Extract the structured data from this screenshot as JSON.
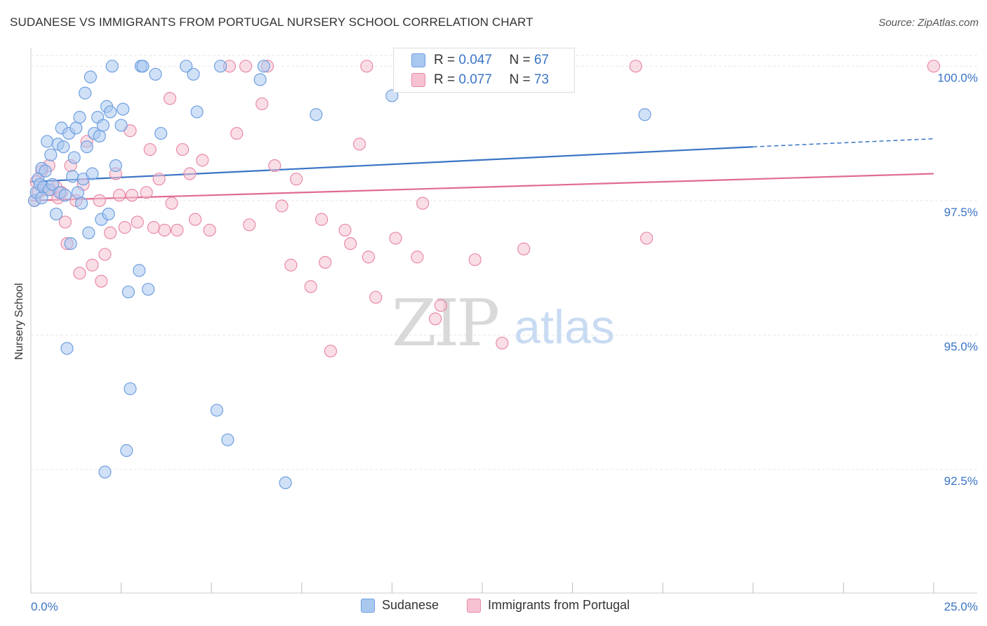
{
  "title": "SUDANESE VS IMMIGRANTS FROM PORTUGAL NURSERY SCHOOL CORRELATION CHART",
  "source": "Source: ZipAtlas.com",
  "watermark": {
    "zip": "ZIP",
    "atlas": "atlas"
  },
  "colors": {
    "blue_fill": "#a9c8f0",
    "blue_stroke": "#6f9fe0",
    "blue_line": "#3a74c5",
    "pink_fill": "#f6c2d2",
    "pink_stroke": "#e88aa8",
    "pink_line": "#e06b92",
    "tick_label": "#3a74c5",
    "grid": "#e6e6e6"
  },
  "legend_top": {
    "rows": [
      {
        "r_label": "R = ",
        "r_value": "0.047",
        "n_label": "N = ",
        "n_value": "67"
      },
      {
        "r_label": "R = ",
        "r_value": "0.077",
        "n_label": "N = ",
        "n_value": "73"
      }
    ]
  },
  "chart_data": {
    "type": "scatter",
    "title": "SUDANESE VS IMMIGRANTS FROM PORTUGAL NURSERY SCHOOL CORRELATION CHART",
    "ylabel": "Nursery School",
    "xlabel": "",
    "xlim": [
      0,
      25
    ],
    "ylim": [
      90.2,
      100.2
    ],
    "x_tick_labels": [
      "0.0%",
      "25.0%"
    ],
    "y_ticks": [
      92.5,
      95.0,
      97.5,
      100.0
    ],
    "y_tick_labels": [
      "92.5%",
      "95.0%",
      "97.5%",
      "100.0%"
    ],
    "grid": true,
    "legend_position": "bottom",
    "series": [
      {
        "name": "Sudanese",
        "color": "#a9c8f0",
        "trend": {
          "x0": 0,
          "y0": 97.85,
          "x1": 20,
          "y1": 98.5,
          "dashed_to_x": 25,
          "dashed_to_y": 98.65
        },
        "points": [
          [
            0.1,
            97.5
          ],
          [
            0.15,
            97.65
          ],
          [
            0.2,
            97.9
          ],
          [
            0.25,
            97.8
          ],
          [
            0.3,
            98.1
          ],
          [
            0.35,
            97.75
          ],
          [
            0.4,
            98.05
          ],
          [
            0.45,
            98.6
          ],
          [
            0.5,
            97.7
          ],
          [
            0.55,
            98.35
          ],
          [
            0.6,
            97.8
          ],
          [
            0.7,
            97.25
          ],
          [
            0.75,
            98.55
          ],
          [
            0.8,
            97.65
          ],
          [
            0.85,
            98.85
          ],
          [
            0.9,
            98.5
          ],
          [
            0.95,
            97.6
          ],
          [
            1.0,
            94.75
          ],
          [
            1.05,
            98.75
          ],
          [
            1.1,
            96.7
          ],
          [
            1.15,
            97.95
          ],
          [
            1.2,
            98.3
          ],
          [
            1.25,
            98.85
          ],
          [
            1.3,
            97.65
          ],
          [
            1.35,
            99.05
          ],
          [
            1.4,
            97.45
          ],
          [
            1.45,
            97.9
          ],
          [
            1.5,
            99.5
          ],
          [
            1.55,
            98.5
          ],
          [
            1.6,
            96.9
          ],
          [
            1.65,
            99.8
          ],
          [
            1.7,
            98.0
          ],
          [
            1.75,
            98.75
          ],
          [
            1.85,
            99.05
          ],
          [
            1.9,
            98.7
          ],
          [
            1.95,
            97.15
          ],
          [
            2.0,
            98.9
          ],
          [
            2.05,
            92.45
          ],
          [
            2.1,
            99.25
          ],
          [
            2.15,
            97.25
          ],
          [
            2.2,
            99.15
          ],
          [
            2.25,
            100.0
          ],
          [
            2.35,
            98.15
          ],
          [
            2.5,
            98.9
          ],
          [
            2.55,
            99.2
          ],
          [
            2.65,
            92.85
          ],
          [
            2.7,
            95.8
          ],
          [
            2.75,
            94.0
          ],
          [
            3.0,
            96.2
          ],
          [
            3.05,
            100.0
          ],
          [
            3.1,
            100.0
          ],
          [
            3.25,
            95.85
          ],
          [
            3.45,
            99.85
          ],
          [
            3.6,
            98.75
          ],
          [
            4.3,
            100.0
          ],
          [
            4.5,
            99.85
          ],
          [
            4.6,
            99.15
          ],
          [
            5.15,
            93.6
          ],
          [
            5.25,
            100.0
          ],
          [
            5.45,
            93.05
          ],
          [
            6.35,
            99.75
          ],
          [
            6.45,
            100.0
          ],
          [
            7.05,
            92.25
          ],
          [
            7.9,
            99.1
          ],
          [
            10.0,
            99.45
          ],
          [
            17.0,
            99.1
          ],
          [
            0.3,
            97.55
          ]
        ]
      },
      {
        "name": "Immigrants from Portugal",
        "color": "#f6c2d2",
        "trend": {
          "x0": 0,
          "y0": 97.5,
          "x1": 25,
          "y1": 98.0
        },
        "points": [
          [
            0.1,
            97.5
          ],
          [
            0.2,
            97.65
          ],
          [
            0.3,
            98.05
          ],
          [
            0.4,
            97.7
          ],
          [
            0.5,
            98.15
          ],
          [
            0.55,
            97.7
          ],
          [
            0.7,
            97.75
          ],
          [
            0.75,
            97.55
          ],
          [
            0.85,
            97.65
          ],
          [
            0.95,
            97.1
          ],
          [
            1.0,
            96.7
          ],
          [
            1.1,
            98.15
          ],
          [
            1.25,
            97.5
          ],
          [
            1.35,
            96.15
          ],
          [
            1.45,
            97.8
          ],
          [
            1.55,
            98.6
          ],
          [
            1.7,
            96.3
          ],
          [
            1.9,
            97.5
          ],
          [
            1.95,
            96.0
          ],
          [
            2.05,
            96.5
          ],
          [
            2.2,
            96.9
          ],
          [
            2.35,
            98.0
          ],
          [
            2.45,
            97.6
          ],
          [
            2.6,
            97.0
          ],
          [
            2.75,
            98.8
          ],
          [
            2.8,
            97.6
          ],
          [
            2.95,
            97.1
          ],
          [
            3.2,
            97.65
          ],
          [
            3.3,
            98.45
          ],
          [
            3.4,
            97.0
          ],
          [
            3.55,
            97.9
          ],
          [
            3.7,
            96.95
          ],
          [
            3.85,
            99.4
          ],
          [
            3.9,
            97.45
          ],
          [
            4.05,
            96.95
          ],
          [
            4.2,
            98.45
          ],
          [
            4.4,
            98.0
          ],
          [
            4.55,
            97.15
          ],
          [
            4.75,
            98.25
          ],
          [
            4.95,
            96.95
          ],
          [
            5.5,
            100.0
          ],
          [
            5.7,
            98.75
          ],
          [
            5.95,
            100.0
          ],
          [
            6.05,
            97.05
          ],
          [
            6.4,
            99.3
          ],
          [
            6.55,
            100.0
          ],
          [
            6.75,
            98.15
          ],
          [
            6.95,
            97.4
          ],
          [
            7.2,
            96.3
          ],
          [
            7.35,
            97.9
          ],
          [
            7.75,
            95.9
          ],
          [
            8.05,
            97.15
          ],
          [
            8.15,
            96.35
          ],
          [
            8.3,
            94.7
          ],
          [
            8.7,
            96.95
          ],
          [
            8.85,
            96.7
          ],
          [
            9.1,
            98.55
          ],
          [
            9.3,
            100.0
          ],
          [
            9.35,
            96.45
          ],
          [
            9.55,
            95.7
          ],
          [
            10.1,
            96.8
          ],
          [
            10.7,
            96.45
          ],
          [
            10.85,
            97.45
          ],
          [
            11.2,
            95.3
          ],
          [
            11.35,
            95.55
          ],
          [
            12.3,
            96.4
          ],
          [
            13.05,
            94.85
          ],
          [
            13.65,
            96.6
          ],
          [
            13.8,
            100.0
          ],
          [
            16.75,
            100.0
          ],
          [
            17.05,
            96.8
          ],
          [
            25.0,
            100.0
          ],
          [
            0.15,
            97.85
          ]
        ]
      }
    ]
  }
}
